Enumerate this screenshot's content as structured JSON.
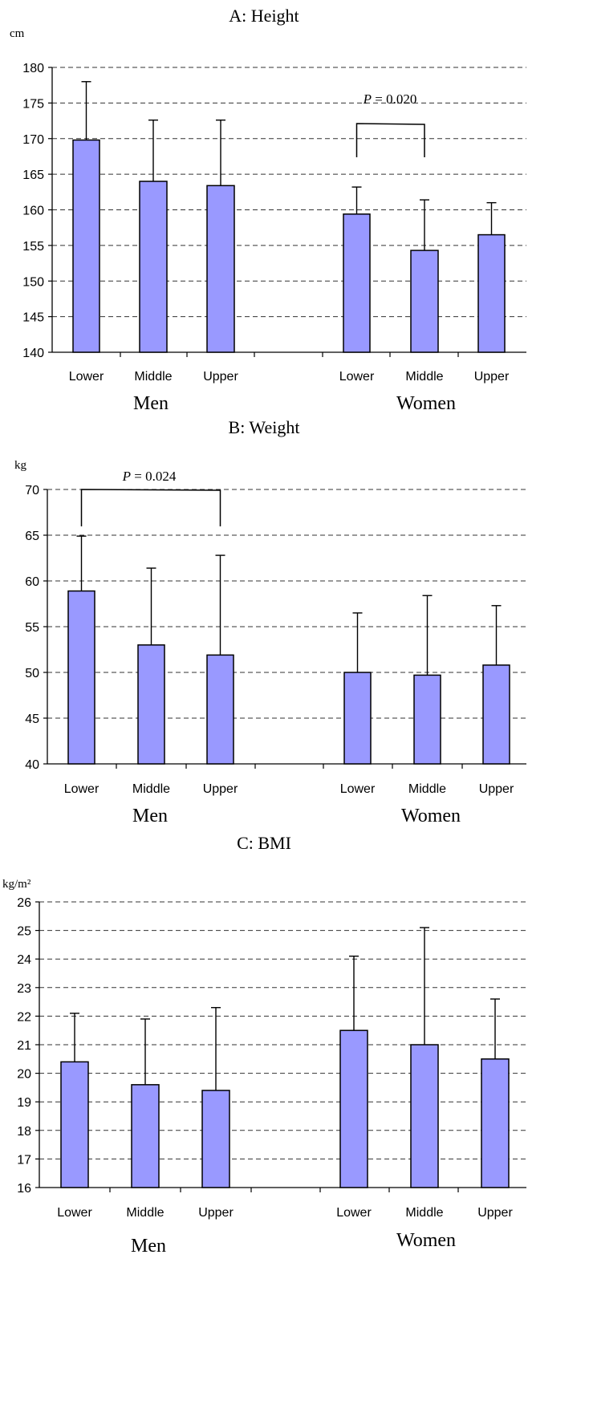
{
  "chart_data": [
    {
      "type": "bar",
      "title": "A: Height",
      "ylabel": "cm",
      "ylim": [
        140,
        180
      ],
      "y_ticks": [
        140,
        145,
        150,
        155,
        160,
        165,
        170,
        175,
        180
      ],
      "grid": "horizontal dashed",
      "groups": [
        "Men",
        "Women"
      ],
      "categories": [
        "Lower",
        "Middle",
        "Upper"
      ],
      "bar_color": "#9999ff",
      "series": [
        {
          "values": [
            169.8,
            164.0,
            163.4
          ],
          "error_upper": [
            178.0,
            172.6,
            172.6
          ]
        },
        {
          "values": [
            159.4,
            154.3,
            156.5
          ],
          "error_upper": [
            163.2,
            161.4,
            161.0
          ]
        }
      ],
      "annotation": {
        "prefix": "P",
        "text": " = 0.020",
        "group": 1,
        "from": 0,
        "to": 1
      }
    },
    {
      "type": "bar",
      "title": "B: Weight",
      "ylabel": "kg",
      "ylim": [
        40,
        70
      ],
      "y_ticks": [
        40,
        45,
        50,
        55,
        60,
        65,
        70
      ],
      "grid": "horizontal dashed",
      "groups": [
        "Men",
        "Women"
      ],
      "categories": [
        "Lower",
        "Middle",
        "Upper"
      ],
      "bar_color": "#9999ff",
      "series": [
        {
          "values": [
            58.9,
            53.0,
            51.9
          ],
          "error_upper": [
            64.9,
            61.4,
            62.8
          ]
        },
        {
          "values": [
            50.0,
            49.7,
            50.8
          ],
          "error_upper": [
            56.5,
            58.4,
            57.3
          ]
        }
      ],
      "annotation": {
        "prefix": "P",
        "text": " = 0.024",
        "group": 0,
        "from": 0,
        "to": 2
      }
    },
    {
      "type": "bar",
      "title": "C: BMI",
      "ylabel": "kg/m²",
      "ylim": [
        16,
        26
      ],
      "y_ticks": [
        16,
        17,
        18,
        19,
        20,
        21,
        22,
        23,
        24,
        25,
        26
      ],
      "grid": "horizontal dashed",
      "groups": [
        "Men",
        "Women"
      ],
      "categories": [
        "Lower",
        "Middle",
        "Upper"
      ],
      "bar_color": "#9999ff",
      "series": [
        {
          "values": [
            20.4,
            19.6,
            19.4
          ],
          "error_upper": [
            22.1,
            21.9,
            22.3
          ]
        },
        {
          "values": [
            21.5,
            21.0,
            20.5
          ],
          "error_upper": [
            24.1,
            25.1,
            22.6
          ]
        }
      ],
      "annotation": null
    }
  ]
}
